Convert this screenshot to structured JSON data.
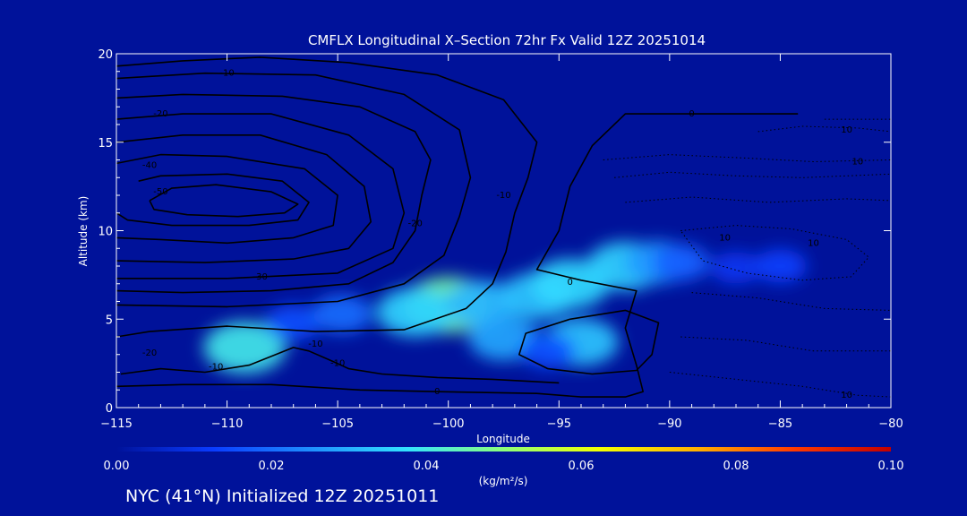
{
  "title": "CMFLX Longitudinal X–Section 72hr  Fx Valid 12Z 20251014",
  "footer": "NYC (41°N) Initialized 12Z 20251011",
  "colors": {
    "background": "#00129a",
    "axis": "#ffffff",
    "contour": "#000000",
    "colormap": [
      "#00129a",
      "#0a3cff",
      "#1f8fff",
      "#33e2ff",
      "#8dff7a",
      "#f4ff00",
      "#ffb000",
      "#ff3a00",
      "#c20000"
    ]
  },
  "chart_data": {
    "type": "heatmap",
    "title": "CMFLX Longitudinal X–Section 72hr  Fx Valid 12Z 20251014",
    "xlabel": "Longitude",
    "ylabel": "Altitude (km)",
    "xlim": [
      -115,
      -80
    ],
    "ylim": [
      0,
      20
    ],
    "xticks": [
      -115,
      -110,
      -105,
      -100,
      -95,
      -90,
      -85,
      -80
    ],
    "yticks": [
      0,
      5,
      10,
      15,
      20
    ],
    "grid": false,
    "colorbar": {
      "label": "(kg/m²/s)",
      "range": [
        0.0,
        0.1
      ],
      "ticks": [
        "0.00",
        "0.02",
        "0.04",
        "0.06",
        "0.08",
        "0.10"
      ]
    },
    "flux_cells": [
      {
        "lon": -100.0,
        "alt": 5.8,
        "value": 0.042
      },
      {
        "lon": -101.5,
        "alt": 5.4,
        "value": 0.032
      },
      {
        "lon": -98.5,
        "alt": 5.9,
        "value": 0.028
      },
      {
        "lon": -96.0,
        "alt": 6.3,
        "value": 0.03
      },
      {
        "lon": -94.5,
        "alt": 7.0,
        "value": 0.033
      },
      {
        "lon": -92.0,
        "alt": 8.0,
        "value": 0.032
      },
      {
        "lon": -90.5,
        "alt": 8.2,
        "value": 0.024
      },
      {
        "lon": -89.5,
        "alt": 8.2,
        "value": 0.016
      },
      {
        "lon": -97.5,
        "alt": 3.9,
        "value": 0.026
      },
      {
        "lon": -94.0,
        "alt": 3.7,
        "value": 0.03
      },
      {
        "lon": -95.5,
        "alt": 3.2,
        "value": 0.014
      },
      {
        "lon": -109.2,
        "alt": 3.4,
        "value": 0.036
      },
      {
        "lon": -107.0,
        "alt": 4.8,
        "value": 0.014
      },
      {
        "lon": -104.8,
        "alt": 5.3,
        "value": 0.018
      },
      {
        "lon": -87.0,
        "alt": 7.9,
        "value": 0.01
      },
      {
        "lon": -85.0,
        "alt": 8.0,
        "value": 0.012
      }
    ],
    "contour_labels": [
      {
        "lon": -110.0,
        "alt": 18.9,
        "text": "-10"
      },
      {
        "lon": -113.0,
        "alt": 16.6,
        "text": "-20"
      },
      {
        "lon": -113.5,
        "alt": 13.7,
        "text": "-40"
      },
      {
        "lon": -113.0,
        "alt": 12.2,
        "text": "-50"
      },
      {
        "lon": -101.5,
        "alt": 10.4,
        "text": "-20"
      },
      {
        "lon": -97.5,
        "alt": 12.0,
        "text": "-10"
      },
      {
        "lon": -108.5,
        "alt": 7.4,
        "text": "-30"
      },
      {
        "lon": -113.5,
        "alt": 3.1,
        "text": "-20"
      },
      {
        "lon": -106.0,
        "alt": 3.6,
        "text": "-10"
      },
      {
        "lon": -105.0,
        "alt": 2.5,
        "text": "-10"
      },
      {
        "lon": -110.5,
        "alt": 2.3,
        "text": "-10"
      },
      {
        "lon": -100.5,
        "alt": 0.9,
        "text": "0"
      },
      {
        "lon": -94.5,
        "alt": 7.1,
        "text": "0"
      },
      {
        "lon": -89.0,
        "alt": 16.6,
        "text": "0"
      },
      {
        "lon": -82.0,
        "alt": 15.7,
        "text": "10"
      },
      {
        "lon": -87.5,
        "alt": 9.6,
        "text": "10"
      },
      {
        "lon": -83.5,
        "alt": 9.3,
        "text": "10"
      },
      {
        "lon": -81.5,
        "alt": 13.9,
        "text": "10"
      },
      {
        "lon": -82.0,
        "alt": 0.7,
        "text": "10"
      }
    ],
    "contours": [
      {
        "level": "-50",
        "points": [
          [
            -113.5,
            11.7
          ],
          [
            -112.5,
            12.4
          ],
          [
            -110.5,
            12.6
          ],
          [
            -108.0,
            12.2
          ],
          [
            -106.8,
            11.5
          ],
          [
            -107.4,
            11.0
          ],
          [
            -109.5,
            10.8
          ],
          [
            -111.8,
            10.9
          ],
          [
            -113.3,
            11.2
          ],
          [
            -113.5,
            11.7
          ]
        ]
      },
      {
        "level": "-40",
        "points": [
          [
            -114.0,
            12.8
          ],
          [
            -113.0,
            13.1
          ],
          [
            -110.0,
            13.2
          ],
          [
            -107.5,
            12.8
          ],
          [
            -106.3,
            11.6
          ],
          [
            -106.8,
            10.6
          ],
          [
            -109.0,
            10.3
          ],
          [
            -112.5,
            10.3
          ],
          [
            -114.5,
            10.6
          ],
          [
            -115.0,
            11.0
          ]
        ]
      },
      {
        "level": "-40",
        "points": [
          [
            -115.0,
            13.8
          ],
          [
            -113.0,
            14.3
          ],
          [
            -110.0,
            14.2
          ],
          [
            -106.5,
            13.5
          ],
          [
            -105.0,
            12.0
          ],
          [
            -105.2,
            10.3
          ],
          [
            -107.0,
            9.6
          ],
          [
            -110.0,
            9.3
          ],
          [
            -113.0,
            9.5
          ],
          [
            -115.0,
            9.6
          ]
        ]
      },
      {
        "level": "-30",
        "points": [
          [
            -115.0,
            15.0
          ],
          [
            -112.0,
            15.4
          ],
          [
            -108.5,
            15.4
          ],
          [
            -105.5,
            14.3
          ],
          [
            -103.8,
            12.5
          ],
          [
            -103.5,
            10.5
          ],
          [
            -104.5,
            9.0
          ],
          [
            -107.0,
            8.4
          ],
          [
            -111.0,
            8.2
          ],
          [
            -115.0,
            8.3
          ]
        ]
      },
      {
        "level": "-30",
        "points": [
          [
            -115.0,
            16.3
          ],
          [
            -112.0,
            16.6
          ],
          [
            -108.0,
            16.6
          ],
          [
            -104.5,
            15.4
          ],
          [
            -102.5,
            13.5
          ],
          [
            -102.0,
            11.0
          ],
          [
            -102.5,
            9.0
          ],
          [
            -105.0,
            7.6
          ],
          [
            -110.0,
            7.3
          ],
          [
            -115.0,
            7.3
          ]
        ]
      },
      {
        "level": "-20",
        "points": [
          [
            -115.0,
            17.5
          ],
          [
            -112.0,
            17.7
          ],
          [
            -107.5,
            17.6
          ],
          [
            -104.0,
            17.0
          ],
          [
            -101.5,
            15.6
          ],
          [
            -100.8,
            14.0
          ],
          [
            -101.2,
            12.0
          ],
          [
            -101.5,
            10.0
          ],
          [
            -102.5,
            8.2
          ],
          [
            -104.5,
            7.0
          ],
          [
            -108.0,
            6.6
          ],
          [
            -112.0,
            6.5
          ],
          [
            -115.0,
            6.6
          ]
        ]
      },
      {
        "level": "-20",
        "points": [
          [
            -115.0,
            18.6
          ],
          [
            -111.0,
            18.9
          ],
          [
            -106.0,
            18.8
          ],
          [
            -102.0,
            17.7
          ],
          [
            -99.5,
            15.7
          ],
          [
            -99.0,
            13.0
          ],
          [
            -99.5,
            10.8
          ],
          [
            -100.2,
            8.6
          ],
          [
            -102.0,
            7.0
          ],
          [
            -105.0,
            6.0
          ],
          [
            -110.0,
            5.7
          ],
          [
            -115.0,
            5.8
          ]
        ]
      },
      {
        "level": "-10",
        "points": [
          [
            -115.0,
            19.3
          ],
          [
            -112.0,
            19.6
          ],
          [
            -108.5,
            19.8
          ],
          [
            -104.5,
            19.5
          ],
          [
            -100.5,
            18.8
          ],
          [
            -97.5,
            17.4
          ],
          [
            -96.0,
            15.0
          ],
          [
            -96.4,
            13.0
          ],
          [
            -97.0,
            11.0
          ],
          [
            -97.4,
            8.8
          ],
          [
            -98.0,
            7.0
          ],
          [
            -99.2,
            5.6
          ],
          [
            -102.0,
            4.4
          ],
          [
            -106.0,
            4.3
          ],
          [
            -110.0,
            4.6
          ],
          [
            -113.5,
            4.3
          ],
          [
            -115.0,
            4.0
          ]
        ]
      },
      {
        "level": "-10",
        "points": [
          [
            -114.8,
            1.9
          ],
          [
            -113.0,
            2.2
          ],
          [
            -111.0,
            2.0
          ],
          [
            -109.0,
            2.4
          ],
          [
            -107.0,
            3.4
          ],
          [
            -106.3,
            3.2
          ],
          [
            -105.2,
            2.6
          ],
          [
            -104.5,
            2.2
          ],
          [
            -103.0,
            1.9
          ],
          [
            -100.5,
            1.7
          ],
          [
            -98.0,
            1.6
          ],
          [
            -95.0,
            1.4
          ]
        ]
      },
      {
        "level": "0",
        "points": [
          [
            -115.0,
            1.2
          ],
          [
            -112.0,
            1.3
          ],
          [
            -108.0,
            1.3
          ],
          [
            -104.0,
            1.0
          ],
          [
            -100.5,
            0.9
          ],
          [
            -96.0,
            0.8
          ],
          [
            -94.0,
            0.6
          ],
          [
            -92.0,
            0.6
          ],
          [
            -91.2,
            0.9
          ],
          [
            -91.5,
            2.4
          ],
          [
            -92.0,
            4.5
          ],
          [
            -91.5,
            6.6
          ],
          [
            -94.0,
            7.2
          ],
          [
            -96.0,
            7.8
          ],
          [
            -95.0,
            10.0
          ],
          [
            -94.5,
            12.5
          ],
          [
            -93.5,
            14.8
          ],
          [
            -92.0,
            16.6
          ],
          [
            -89.0,
            16.6
          ],
          [
            -86.0,
            16.6
          ],
          [
            -84.2,
            16.6
          ]
        ]
      },
      {
        "level": "0",
        "points": [
          [
            -94.5,
            5.0
          ],
          [
            -92.0,
            5.5
          ],
          [
            -90.5,
            4.8
          ],
          [
            -90.8,
            3.0
          ],
          [
            -91.5,
            2.1
          ],
          [
            -93.5,
            1.9
          ],
          [
            -95.5,
            2.2
          ],
          [
            -96.8,
            3.0
          ],
          [
            -96.5,
            4.2
          ],
          [
            -94.5,
            5.0
          ]
        ]
      }
    ],
    "dotted_contours": [
      {
        "level": "10",
        "points": [
          [
            -83.0,
            16.3
          ],
          [
            -80.0,
            16.3
          ]
        ]
      },
      {
        "level": "10",
        "points": [
          [
            -86.0,
            15.6
          ],
          [
            -84.0,
            15.9
          ],
          [
            -81.5,
            15.8
          ],
          [
            -80.0,
            15.6
          ]
        ]
      },
      {
        "level": "10",
        "points": [
          [
            -93.0,
            14.0
          ],
          [
            -90.0,
            14.3
          ],
          [
            -86.5,
            14.1
          ],
          [
            -83.5,
            13.9
          ],
          [
            -80.0,
            14.0
          ]
        ]
      },
      {
        "level": "10",
        "points": [
          [
            -92.5,
            13.0
          ],
          [
            -90.0,
            13.3
          ],
          [
            -87.0,
            13.1
          ],
          [
            -84.0,
            13.0
          ],
          [
            -80.0,
            13.2
          ]
        ]
      },
      {
        "level": "10",
        "points": [
          [
            -92.0,
            11.6
          ],
          [
            -89.0,
            11.9
          ],
          [
            -85.5,
            11.6
          ],
          [
            -82.0,
            11.8
          ],
          [
            -80.0,
            11.7
          ]
        ]
      },
      {
        "level": "10",
        "points": [
          [
            -89.5,
            10.0
          ],
          [
            -87.0,
            10.3
          ],
          [
            -84.5,
            10.1
          ],
          [
            -82.0,
            9.5
          ],
          [
            -81.0,
            8.5
          ],
          [
            -81.8,
            7.4
          ],
          [
            -84.0,
            7.2
          ],
          [
            -86.5,
            7.6
          ],
          [
            -88.5,
            8.3
          ],
          [
            -89.5,
            10.0
          ]
        ]
      },
      {
        "level": "10",
        "points": [
          [
            -89.0,
            6.5
          ],
          [
            -86.0,
            6.2
          ],
          [
            -83.0,
            5.6
          ],
          [
            -80.0,
            5.5
          ]
        ]
      },
      {
        "level": "10",
        "points": [
          [
            -89.5,
            4.0
          ],
          [
            -86.5,
            3.8
          ],
          [
            -83.5,
            3.2
          ],
          [
            -80.0,
            3.2
          ]
        ]
      },
      {
        "level": "10",
        "points": [
          [
            -90.0,
            2.0
          ],
          [
            -87.0,
            1.6
          ],
          [
            -84.0,
            1.2
          ],
          [
            -81.5,
            0.7
          ],
          [
            -80.0,
            0.6
          ]
        ]
      }
    ]
  }
}
